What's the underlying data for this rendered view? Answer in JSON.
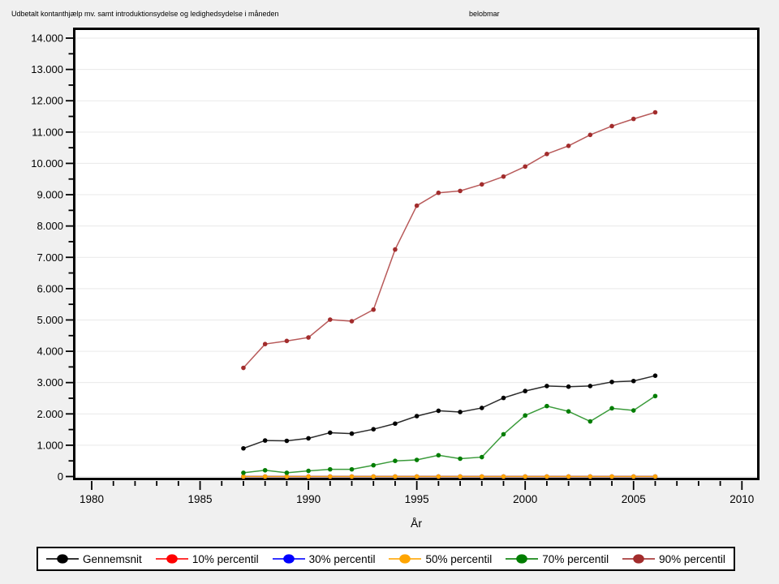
{
  "header": {
    "title_left": "Udbetalt kontanthjælp mv. samt introduktionsydelse og ledighedsydelse i måneden",
    "title_right": "belobmar"
  },
  "chart_data": {
    "type": "line",
    "title": "Udbetalt kontanthjælp mv. samt introduktionsydelse og ledighedsydelse i måneden",
    "subtitle": "belobmar",
    "xlabel": "År",
    "ylabel": "",
    "grid": "horizontal",
    "legend_position": "bottom",
    "x": [
      1987,
      1988,
      1989,
      1990,
      1991,
      1992,
      1993,
      1994,
      1995,
      1996,
      1997,
      1998,
      1999,
      2000,
      2001,
      2002,
      2003,
      2004,
      2005,
      2006
    ],
    "series": [
      {
        "name": "Gennemsnit",
        "marker_color": "#000000",
        "line_color": "#2B2B2B",
        "values": [
          900,
          1150,
          1140,
          1220,
          1400,
          1370,
          1510,
          1690,
          1930,
          2100,
          2060,
          2190,
          2510,
          2730,
          2890,
          2870,
          2890,
          3020,
          3050,
          3220
        ]
      },
      {
        "name": "10% percentil",
        "marker_color": "#FF0000",
        "line_color": "#FF0000",
        "values": [
          0,
          0,
          0,
          0,
          0,
          0,
          0,
          0,
          0,
          0,
          0,
          0,
          0,
          0,
          0,
          0,
          0,
          0,
          0,
          0
        ]
      },
      {
        "name": "30% percentil",
        "marker_color": "#0000FF",
        "line_color": "#0000FF",
        "values": [
          0,
          0,
          0,
          0,
          0,
          0,
          0,
          0,
          0,
          0,
          0,
          0,
          0,
          0,
          0,
          0,
          0,
          0,
          0,
          0
        ]
      },
      {
        "name": "50% percentil",
        "marker_color": "#FFA500",
        "line_color": "#E8940A",
        "values": [
          0,
          0,
          0,
          0,
          0,
          0,
          0,
          0,
          0,
          0,
          0,
          0,
          0,
          0,
          0,
          0,
          0,
          0,
          0,
          0
        ]
      },
      {
        "name": "70% percentil",
        "marker_color": "#007D00",
        "line_color": "#3B9B3B",
        "values": [
          120,
          200,
          120,
          180,
          230,
          230,
          360,
          500,
          530,
          680,
          570,
          620,
          1350,
          1950,
          2250,
          2080,
          1760,
          2180,
          2110,
          2570
        ]
      },
      {
        "name": "90% percentil",
        "marker_color": "#A22C2C",
        "line_color": "#B85A5A",
        "values": [
          3470,
          4230,
          4330,
          4440,
          5010,
          4960,
          5330,
          7250,
          8650,
          9060,
          9120,
          9330,
          9580,
          9900,
          10300,
          10560,
          10910,
          11190,
          11420,
          11630
        ]
      }
    ],
    "x_axis": {
      "min": 1979.15,
      "max": 2010.85,
      "major_ticks": [
        1980,
        1985,
        1990,
        1995,
        2000,
        2005,
        2010
      ],
      "tick_labels": [
        "1980",
        "1985",
        "1990",
        "1995",
        "2000",
        "2005",
        "2010"
      ],
      "minor_tick_step": 1
    },
    "y_axis": {
      "min": 0,
      "max": 14000,
      "major_tick_step": 1000,
      "minor_tick_step": 500,
      "tick_labels": [
        "0",
        "1.000",
        "2.000",
        "3.000",
        "4.000",
        "5.000",
        "6.000",
        "7.000",
        "8.000",
        "9.000",
        "10.000",
        "11.000",
        "12.000",
        "13.000",
        "14.000"
      ]
    },
    "colors": {
      "page_background": "#F0F0F0",
      "plot_background": "#FFFFFF",
      "gridline": "#E9E9E9",
      "frame": "#000000"
    }
  }
}
